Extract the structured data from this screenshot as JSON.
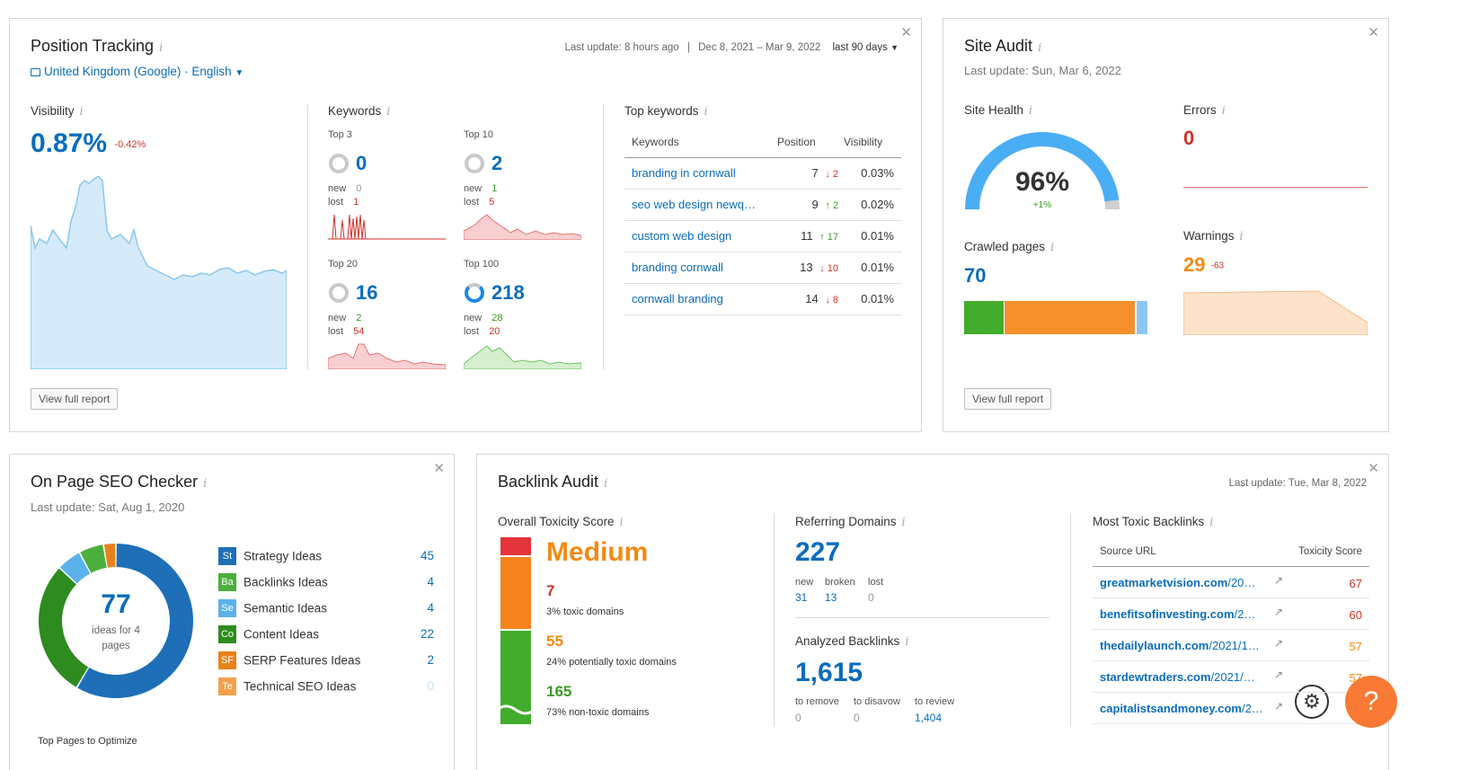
{
  "position_tracking": {
    "title": "Position Tracking",
    "location": "United Kingdom (Google) · English",
    "last_update": "Last update: 8 hours ago",
    "date_range": "Dec 8, 2021 – Mar 9, 2022",
    "period": "last 90 days",
    "visibility_label": "Visibility",
    "visibility_value": "0.87%",
    "visibility_delta": "-0.42%",
    "keywords_label": "Keywords",
    "groups": [
      {
        "label": "Top 3",
        "value": "0",
        "new_label": "new",
        "new": "0",
        "lost_label": "lost",
        "lost": "1",
        "new_color": "#d2312a"
      },
      {
        "label": "Top 10",
        "value": "2",
        "new_label": "new",
        "new": "1",
        "lost_label": "lost",
        "lost": "5",
        "new_color": "#3a9b27"
      },
      {
        "label": "Top 20",
        "value": "16",
        "new_label": "new",
        "new": "2",
        "lost_label": "lost",
        "lost": "54",
        "new_color": "#3a9b27"
      },
      {
        "label": "Top 100",
        "value": "218",
        "new_label": "new",
        "new": "28",
        "lost_label": "lost",
        "lost": "20",
        "new_color": "#3a9b27"
      }
    ],
    "top_keywords_label": "Top keywords",
    "table_headers": [
      "Keywords",
      "Position",
      "Visibility"
    ],
    "rows": [
      {
        "keyword": "branding in cornwall",
        "position": "7",
        "arrow": "↓",
        "change": "2",
        "dir": "down",
        "visibility": "0.03%"
      },
      {
        "keyword": "seo web design newq…",
        "position": "9",
        "arrow": "↑",
        "change": "2",
        "dir": "up",
        "visibility": "0.02%"
      },
      {
        "keyword": "custom web design",
        "position": "11",
        "arrow": "↑",
        "change": "17",
        "dir": "up",
        "visibility": "0.01%"
      },
      {
        "keyword": "branding cornwall",
        "position": "13",
        "arrow": "↓",
        "change": "10",
        "dir": "down",
        "visibility": "0.01%"
      },
      {
        "keyword": "cornwall branding",
        "position": "14",
        "arrow": "↓",
        "change": "8",
        "dir": "down",
        "visibility": "0.01%"
      }
    ],
    "view_report": "View full report"
  },
  "site_audit": {
    "title": "Site Audit",
    "last_update": "Last update: Sun, Mar 6, 2022",
    "health_label": "Site Health",
    "health_value": "96%",
    "health_fraction": 0.96,
    "health_delta": "+1%",
    "errors_label": "Errors",
    "errors_value": "0",
    "crawled_label": "Crawled pages",
    "crawled_value": "70",
    "warnings_label": "Warnings",
    "warnings_value": "29",
    "warnings_delta": "-63",
    "view_report": "View full report"
  },
  "on_page_seo": {
    "title": "On Page SEO Checker",
    "last_update": "Last update: Sat, Aug 1, 2020",
    "total": "77",
    "total_caption": "ideas for 4 pages",
    "ideas": [
      {
        "abbr": "St",
        "label": "Strategy Ideas",
        "value": "45",
        "color": "#1e6fb8"
      },
      {
        "abbr": "Ba",
        "label": "Backlinks Ideas",
        "value": "4",
        "color": "#4caf3d"
      },
      {
        "abbr": "Se",
        "label": "Semantic Ideas",
        "value": "4",
        "color": "#5bb2ea"
      },
      {
        "abbr": "Co",
        "label": "Content Ideas",
        "value": "22",
        "color": "#2e8b1f"
      },
      {
        "abbr": "SF",
        "label": "SERP Features Ideas",
        "value": "2",
        "color": "#e8821a"
      },
      {
        "abbr": "Te",
        "label": "Technical SEO Ideas",
        "value": "0",
        "color": "#f5a04a"
      }
    ],
    "footer_hint": "Top Pages to Optimize"
  },
  "backlink_audit": {
    "title": "Backlink Audit",
    "last_update": "Last update: Tue, Mar 8, 2022",
    "toxicity_label": "Overall Toxicity Score",
    "toxicity_value": "Medium",
    "toxic": {
      "value": "7",
      "caption": "3% toxic domains"
    },
    "potential": {
      "value": "55",
      "caption": "24% potentially toxic domains"
    },
    "nontoxic": {
      "value": "165",
      "caption": "73% non-toxic domains"
    },
    "referring_label": "Referring Domains",
    "referring_value": "227",
    "ref_new_label": "new",
    "ref_new": "31",
    "ref_broken_label": "broken",
    "ref_broken": "13",
    "ref_lost_label": "lost",
    "ref_lost": "0",
    "analyzed_label": "Analyzed Backlinks",
    "analyzed_value": "1,615",
    "remove_label": "to remove",
    "remove": "0",
    "disavow_label": "to disavow",
    "disavow": "0",
    "review_label": "to review",
    "review": "1,404",
    "toxic_links_label": "Most Toxic Backlinks",
    "headers": [
      "Source URL",
      "Toxicity Score"
    ],
    "links": [
      {
        "domain": "greatmarketvision.com",
        "path": "/20…",
        "score": "67",
        "color": "#d2312a"
      },
      {
        "domain": "benefitsofinvesting.com",
        "path": "/2…",
        "score": "60",
        "color": "#d2312a"
      },
      {
        "domain": "thedailylaunch.com",
        "path": "/2021/1…",
        "score": "57",
        "color": "#f28a12"
      },
      {
        "domain": "stardewtraders.com",
        "path": "/2021/…",
        "score": "57",
        "color": "#f28a12"
      },
      {
        "domain": "capitalistsandmoney.com",
        "path": "/2…",
        "score": "",
        "color": "#d2312a"
      }
    ]
  },
  "help_button": "?"
}
